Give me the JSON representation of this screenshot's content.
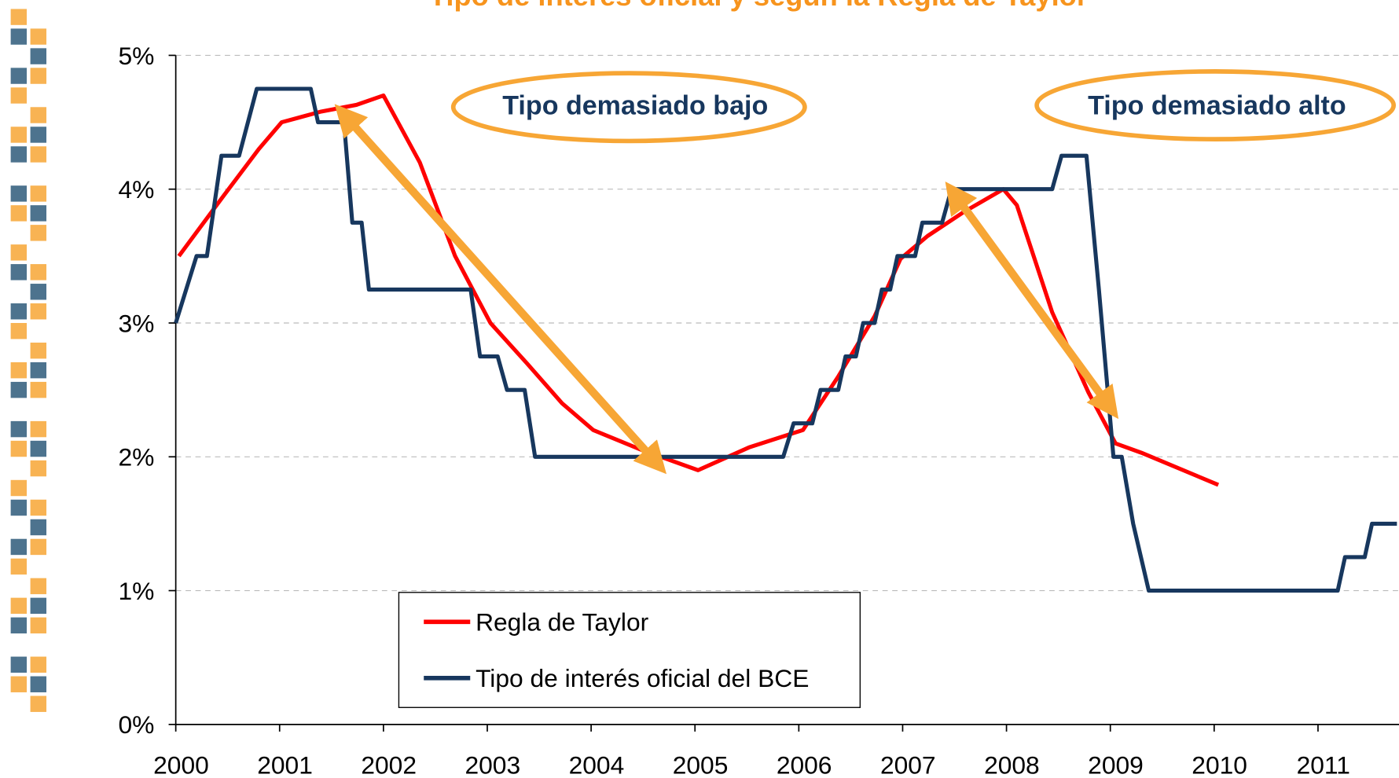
{
  "chart_data": {
    "type": "line",
    "title": "Tipo de interés oficial y según la Regla de Taylor",
    "annotations": [
      "Tipo demasiado bajo",
      "Tipo demasiado alto"
    ],
    "xlim": [
      2000,
      2011.78
    ],
    "xticks": [
      2000,
      2001,
      2002,
      2003,
      2004,
      2005,
      2006,
      2007,
      2008,
      2009,
      2010,
      2011
    ],
    "ylim": [
      0,
      5
    ],
    "yticks": [
      {
        "value": 0,
        "label": "0%"
      },
      {
        "value": 1,
        "label": "1%"
      },
      {
        "value": 2,
        "label": "2%"
      },
      {
        "value": 3,
        "label": "3%"
      },
      {
        "value": 4,
        "label": "4%"
      },
      {
        "value": 5,
        "label": "5%"
      }
    ],
    "grid": true,
    "series": [
      {
        "name": "Regla de Taylor",
        "color": "#ff0000",
        "x": [
          2000.03,
          2000.46,
          2000.8,
          2001.02,
          2001.4,
          2001.74,
          2002.0,
          2002.35,
          2002.69,
          2003.03,
          2003.38,
          2003.72,
          2004.02,
          2004.49,
          2005.03,
          2005.52,
          2006.04,
          2006.38,
          2006.73,
          2006.98,
          2007.24,
          2007.59,
          2007.97,
          2008.1,
          2008.44,
          2008.79,
          2009.05,
          2009.3,
          2010.04
        ],
        "values": [
          3.5,
          3.95,
          4.3,
          4.5,
          4.58,
          4.63,
          4.7,
          4.2,
          3.5,
          3.0,
          2.7,
          2.4,
          2.2,
          2.05,
          1.9,
          2.07,
          2.2,
          2.6,
          3.05,
          3.48,
          3.65,
          3.83,
          4.0,
          3.88,
          3.08,
          2.48,
          2.1,
          2.03,
          1.79
        ]
      },
      {
        "name": "Tipo de interés oficial del BCE",
        "color": "#17375e",
        "x": [
          2000.0,
          2000.2,
          2000.3,
          2000.44,
          2000.61,
          2000.78,
          2001.3,
          2001.37,
          2001.62,
          2001.7,
          2001.79,
          2001.86,
          2002.84,
          2002.93,
          2003.1,
          2003.19,
          2003.36,
          2003.46,
          2005.85,
          2005.95,
          2006.13,
          2006.21,
          2006.38,
          2006.45,
          2006.55,
          2006.62,
          2006.73,
          2006.8,
          2006.88,
          2006.95,
          2007.12,
          2007.19,
          2007.38,
          2007.47,
          2008.44,
          2008.53,
          2008.77,
          2008.89,
          2009.03,
          2009.11,
          2009.22,
          2009.37,
          2011.19,
          2011.26,
          2011.45,
          2011.52,
          2011.76
        ],
        "values": [
          3.0,
          3.5,
          3.5,
          4.25,
          4.25,
          4.75,
          4.75,
          4.5,
          4.5,
          3.75,
          3.75,
          3.25,
          3.25,
          2.75,
          2.75,
          2.5,
          2.5,
          2.0,
          2.0,
          2.25,
          2.25,
          2.5,
          2.5,
          2.75,
          2.75,
          3.0,
          3.0,
          3.25,
          3.25,
          3.5,
          3.5,
          3.75,
          3.75,
          4.0,
          4.0,
          4.25,
          4.25,
          3.25,
          2.0,
          2.0,
          1.5,
          1.0,
          1.0,
          1.25,
          1.25,
          1.5,
          1.5
        ]
      }
    ]
  }
}
